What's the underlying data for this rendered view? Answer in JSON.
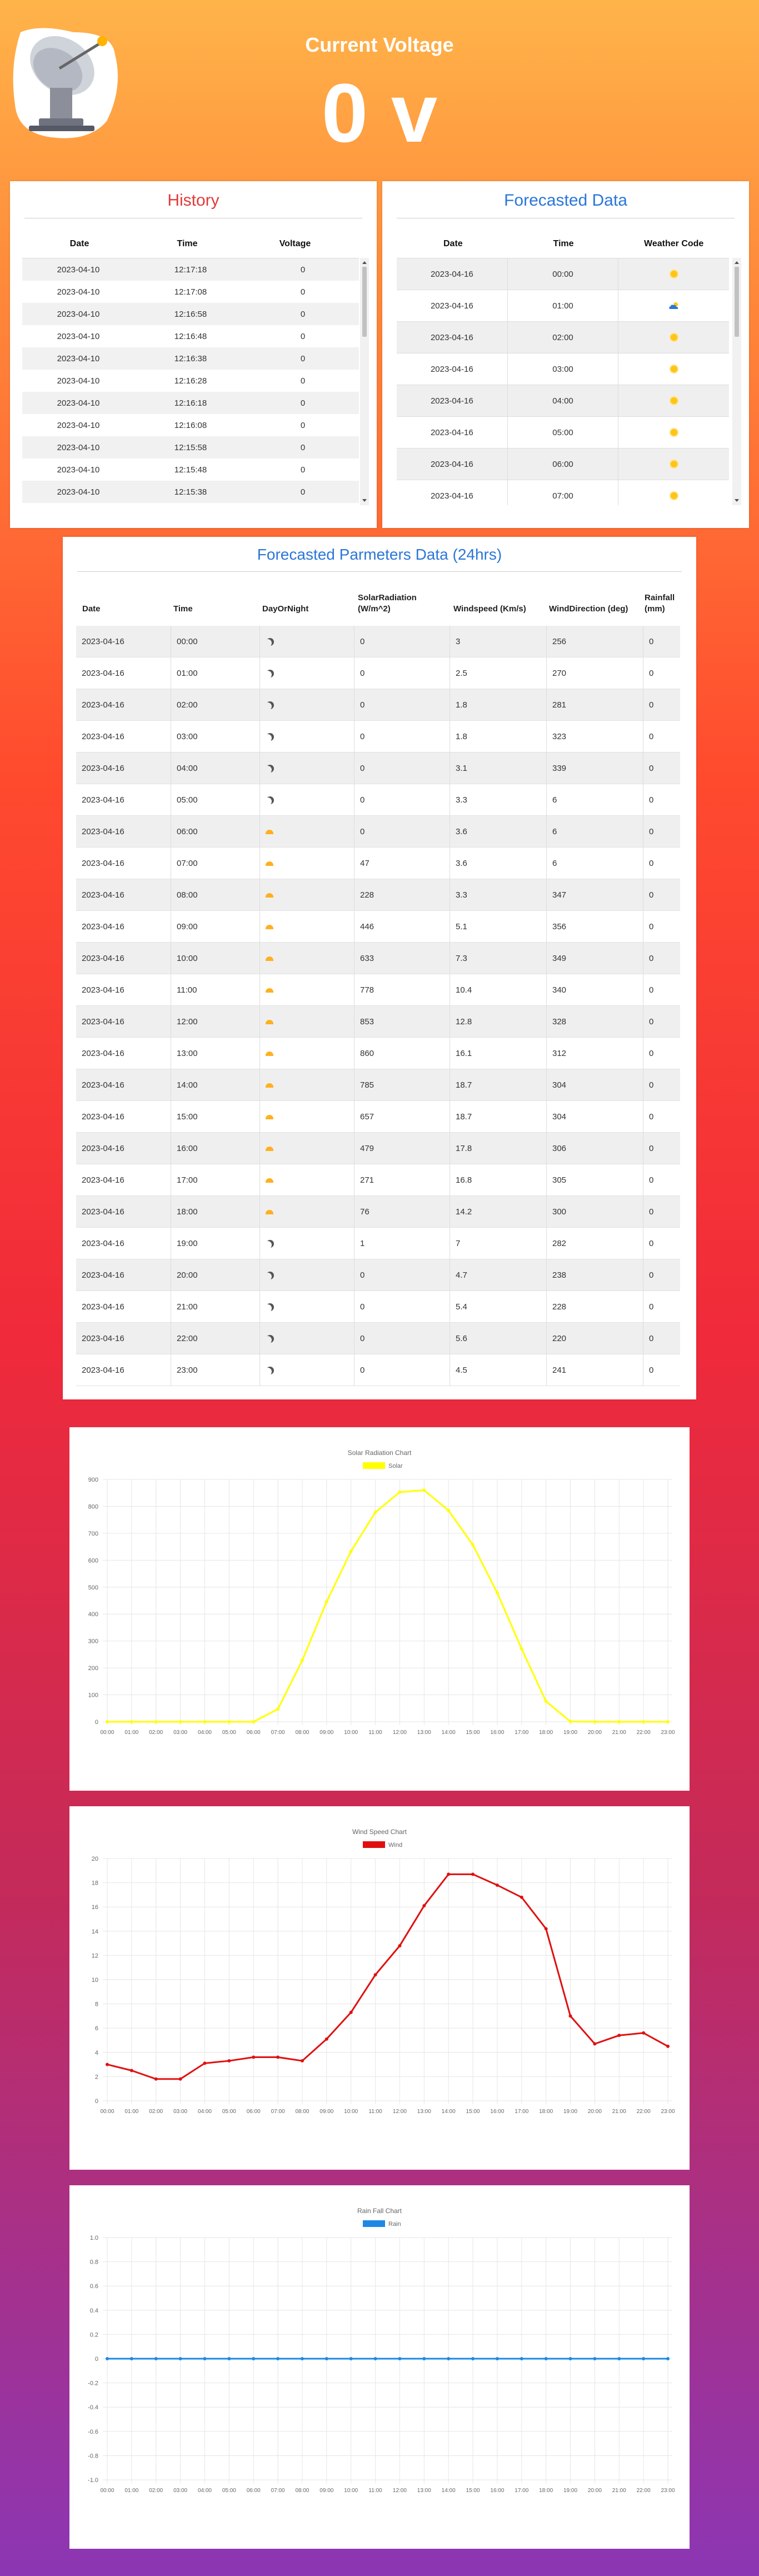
{
  "header": {
    "title": "Current Voltage",
    "voltage_value": "0 v"
  },
  "history": {
    "title": "History",
    "columns": [
      "Date",
      "Time",
      "Voltage"
    ],
    "rows": [
      [
        "2023-04-10",
        "12:17:18",
        "0"
      ],
      [
        "2023-04-10",
        "12:17:08",
        "0"
      ],
      [
        "2023-04-10",
        "12:16:58",
        "0"
      ],
      [
        "2023-04-10",
        "12:16:48",
        "0"
      ],
      [
        "2023-04-10",
        "12:16:38",
        "0"
      ],
      [
        "2023-04-10",
        "12:16:28",
        "0"
      ],
      [
        "2023-04-10",
        "12:16:18",
        "0"
      ],
      [
        "2023-04-10",
        "12:16:08",
        "0"
      ],
      [
        "2023-04-10",
        "12:15:58",
        "0"
      ],
      [
        "2023-04-10",
        "12:15:48",
        "0"
      ],
      [
        "2023-04-10",
        "12:15:38",
        "0"
      ]
    ]
  },
  "forecast": {
    "title": "Forecasted Data",
    "columns": [
      "Date",
      "Time",
      "Weather Code"
    ],
    "rows": [
      [
        "2023-04-16",
        "00:00",
        "sun-icon"
      ],
      [
        "2023-04-16",
        "01:00",
        "partly-cloudy-icon"
      ],
      [
        "2023-04-16",
        "02:00",
        "sun-icon"
      ],
      [
        "2023-04-16",
        "03:00",
        "sun-icon"
      ],
      [
        "2023-04-16",
        "04:00",
        "sun-icon"
      ],
      [
        "2023-04-16",
        "05:00",
        "sun-icon"
      ],
      [
        "2023-04-16",
        "06:00",
        "sun-icon"
      ],
      [
        "2023-04-16",
        "07:00",
        "sun-icon"
      ]
    ]
  },
  "params": {
    "title": "Forecasted Parmeters Data (24hrs)",
    "columns": [
      "Date",
      "Time",
      "DayOrNight",
      "SolarRadiation (W/m^2)",
      "Windspeed (Km/s)",
      "WindDirection (deg)",
      "Rainfall (mm)"
    ],
    "rows": [
      [
        "2023-04-16",
        "00:00",
        "night",
        "0",
        "3",
        "256",
        "0"
      ],
      [
        "2023-04-16",
        "01:00",
        "night",
        "0",
        "2.5",
        "270",
        "0"
      ],
      [
        "2023-04-16",
        "02:00",
        "night",
        "0",
        "1.8",
        "281",
        "0"
      ],
      [
        "2023-04-16",
        "03:00",
        "night",
        "0",
        "1.8",
        "323",
        "0"
      ],
      [
        "2023-04-16",
        "04:00",
        "night",
        "0",
        "3.1",
        "339",
        "0"
      ],
      [
        "2023-04-16",
        "05:00",
        "night",
        "0",
        "3.3",
        "6",
        "0"
      ],
      [
        "2023-04-16",
        "06:00",
        "day",
        "0",
        "3.6",
        "6",
        "0"
      ],
      [
        "2023-04-16",
        "07:00",
        "day",
        "47",
        "3.6",
        "6",
        "0"
      ],
      [
        "2023-04-16",
        "08:00",
        "day",
        "228",
        "3.3",
        "347",
        "0"
      ],
      [
        "2023-04-16",
        "09:00",
        "day",
        "446",
        "5.1",
        "356",
        "0"
      ],
      [
        "2023-04-16",
        "10:00",
        "day",
        "633",
        "7.3",
        "349",
        "0"
      ],
      [
        "2023-04-16",
        "11:00",
        "day",
        "778",
        "10.4",
        "340",
        "0"
      ],
      [
        "2023-04-16",
        "12:00",
        "day",
        "853",
        "12.8",
        "328",
        "0"
      ],
      [
        "2023-04-16",
        "13:00",
        "day",
        "860",
        "16.1",
        "312",
        "0"
      ],
      [
        "2023-04-16",
        "14:00",
        "day",
        "785",
        "18.7",
        "304",
        "0"
      ],
      [
        "2023-04-16",
        "15:00",
        "day",
        "657",
        "18.7",
        "304",
        "0"
      ],
      [
        "2023-04-16",
        "16:00",
        "day",
        "479",
        "17.8",
        "306",
        "0"
      ],
      [
        "2023-04-16",
        "17:00",
        "day",
        "271",
        "16.8",
        "305",
        "0"
      ],
      [
        "2023-04-16",
        "18:00",
        "day",
        "76",
        "14.2",
        "300",
        "0"
      ],
      [
        "2023-04-16",
        "19:00",
        "night",
        "1",
        "7",
        "282",
        "0"
      ],
      [
        "2023-04-16",
        "20:00",
        "night",
        "0",
        "4.7",
        "238",
        "0"
      ],
      [
        "2023-04-16",
        "21:00",
        "night",
        "0",
        "5.4",
        "228",
        "0"
      ],
      [
        "2023-04-16",
        "22:00",
        "night",
        "0",
        "5.6",
        "220",
        "0"
      ],
      [
        "2023-04-16",
        "23:00",
        "night",
        "0",
        "4.5",
        "241",
        "0"
      ]
    ]
  },
  "colors": {
    "solar": "#ffff00",
    "wind": "#e01010",
    "rain": "#1e88e5",
    "history_title": "#e03a3a",
    "forecast_title": "#2a76d8"
  },
  "chart_data": [
    {
      "type": "line",
      "title": "Solar Radiation Chart",
      "legend": "top-center",
      "x": [
        "00:00",
        "01:00",
        "02:00",
        "03:00",
        "04:00",
        "05:00",
        "06:00",
        "07:00",
        "08:00",
        "09:00",
        "10:00",
        "11:00",
        "12:00",
        "13:00",
        "14:00",
        "15:00",
        "16:00",
        "17:00",
        "18:00",
        "19:00",
        "20:00",
        "21:00",
        "22:00",
        "23:00"
      ],
      "series": [
        {
          "name": "Solar",
          "values": [
            0,
            0,
            0,
            0,
            0,
            0,
            0,
            47,
            228,
            446,
            633,
            778,
            853,
            860,
            785,
            657,
            479,
            271,
            76,
            1,
            0,
            0,
            0,
            0
          ]
        }
      ],
      "ylim": [
        0,
        900
      ],
      "yticks": [
        0,
        100,
        200,
        300,
        400,
        500,
        600,
        700,
        800,
        900
      ],
      "grid": true
    },
    {
      "type": "line",
      "title": "Wind Speed Chart",
      "legend": "top-center",
      "x": [
        "00:00",
        "01:00",
        "02:00",
        "03:00",
        "04:00",
        "05:00",
        "06:00",
        "07:00",
        "08:00",
        "09:00",
        "10:00",
        "11:00",
        "12:00",
        "13:00",
        "14:00",
        "15:00",
        "16:00",
        "17:00",
        "18:00",
        "19:00",
        "20:00",
        "21:00",
        "22:00",
        "23:00"
      ],
      "series": [
        {
          "name": "Wind",
          "values": [
            3,
            2.5,
            1.8,
            1.8,
            3.1,
            3.3,
            3.6,
            3.6,
            3.3,
            5.1,
            7.3,
            10.4,
            12.8,
            16.1,
            18.7,
            18.7,
            17.8,
            16.8,
            14.2,
            7,
            4.7,
            5.4,
            5.6,
            4.5
          ]
        }
      ],
      "ylim": [
        0,
        20
      ],
      "yticks": [
        0,
        2,
        4,
        6,
        8,
        10,
        12,
        14,
        16,
        18,
        20
      ],
      "grid": true
    },
    {
      "type": "line",
      "title": "Rain Fall Chart",
      "legend": "top-center",
      "x": [
        "00:00",
        "01:00",
        "02:00",
        "03:00",
        "04:00",
        "05:00",
        "06:00",
        "07:00",
        "08:00",
        "09:00",
        "10:00",
        "11:00",
        "12:00",
        "13:00",
        "14:00",
        "15:00",
        "16:00",
        "17:00",
        "18:00",
        "19:00",
        "20:00",
        "21:00",
        "22:00",
        "23:00"
      ],
      "series": [
        {
          "name": "Rain",
          "values": [
            0,
            0,
            0,
            0,
            0,
            0,
            0,
            0,
            0,
            0,
            0,
            0,
            0,
            0,
            0,
            0,
            0,
            0,
            0,
            0,
            0,
            0,
            0,
            0
          ]
        }
      ],
      "ylim": [
        -1.0,
        1.0
      ],
      "yticks": [
        "-1.0",
        "-0.8",
        "-0.6",
        "-0.4",
        "-0.2",
        "0",
        "0.2",
        "0.4",
        "0.6",
        "0.8",
        "1.0"
      ],
      "grid": true
    }
  ]
}
